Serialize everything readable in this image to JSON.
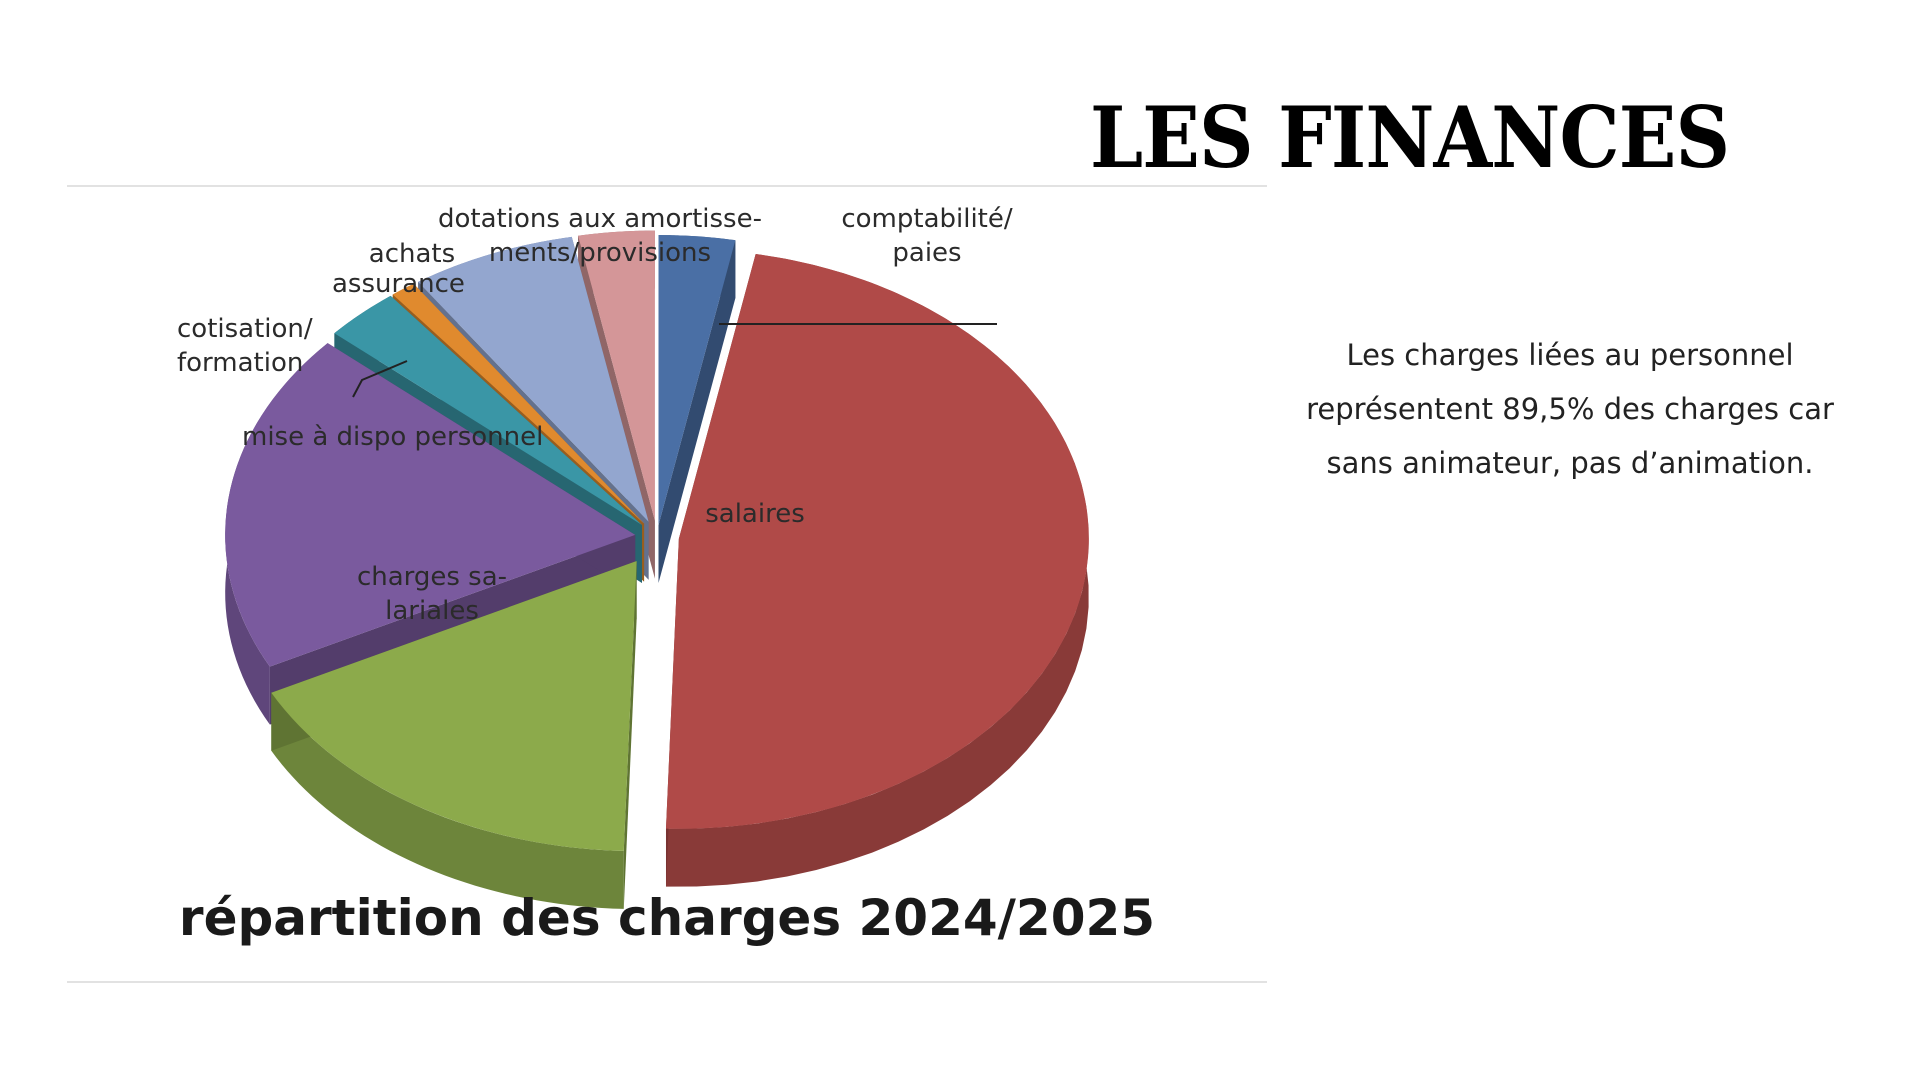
{
  "slide": {
    "title": "LES FINANCES",
    "body": "Les charges liées au personnel représentent 89,5% des charges car sans animateur, pas d’animation."
  },
  "chart_data": {
    "type": "pie",
    "title": "répartition des charges 2024/2025",
    "start_angle_deg": 0,
    "slices": [
      {
        "label": "comptabilité/ paies",
        "lines": [
          "comptabilité/",
          "paies"
        ],
        "value": 3.0,
        "color": "#4a6fa5"
      },
      {
        "label": "salaires",
        "lines": [
          "salaires"
        ],
        "value": 47.5,
        "color": "#b04a48"
      },
      {
        "label": "charges salariales",
        "lines": [
          "charges sa-",
          "lariales"
        ],
        "value": 17.0,
        "color": "#8caa4b"
      },
      {
        "label": "mise à dispo personnel",
        "lines": [
          "mise à dispo personnel"
        ],
        "value": 19.0,
        "color": "#7a5a9e"
      },
      {
        "label": "cotisation/ formation",
        "lines": [
          "cotisation/",
          "formation"
        ],
        "value": 3.0,
        "color": "#3a96a6"
      },
      {
        "label": "assurance",
        "lines": [
          "assurance"
        ],
        "value": 1.0,
        "color": "#e08a2e"
      },
      {
        "label": "achats",
        "lines": [
          "achats"
        ],
        "value": 6.5,
        "color": "#93a6cf"
      },
      {
        "label": "dotations aux amortissements/provisions",
        "lines": [
          "dotations aux amortisse-",
          "ments/provisions"
        ],
        "value": 3.0,
        "color": "#d49698"
      }
    ]
  }
}
